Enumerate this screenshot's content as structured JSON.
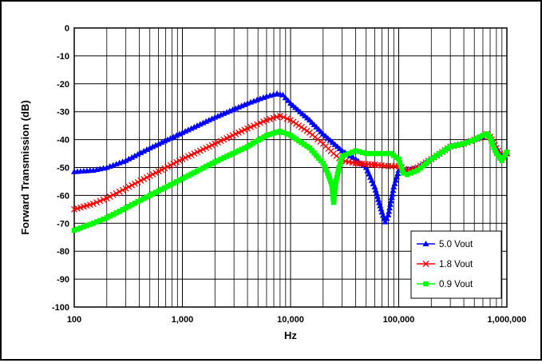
{
  "chart_data": {
    "type": "line",
    "title": "",
    "xlabel": "Hz",
    "ylabel": "Forward Transmission (dB)",
    "x_scale": "log",
    "xlim": [
      100,
      1000000
    ],
    "ylim": [
      -100,
      0
    ],
    "grid": true,
    "legend_position": "bottom-right",
    "x_ticks": [
      100,
      1000,
      10000,
      100000,
      1000000
    ],
    "x_tick_labels": [
      "100",
      "1,000",
      "10,000",
      "100,000",
      "1,000,000"
    ],
    "y_ticks": [
      0,
      -10,
      -20,
      -30,
      -40,
      -50,
      -60,
      -70,
      -80,
      -90,
      -100
    ],
    "y_tick_labels": [
      "0",
      "-10",
      "-20",
      "-30",
      "-40",
      "-50",
      "-60",
      "-70",
      "-80",
      "-90",
      "-100"
    ],
    "series": [
      {
        "name": "5.0 Vout",
        "color": "#0000ff",
        "marker": "triangle",
        "points": [
          [
            100,
            -51.5
          ],
          [
            150,
            -51
          ],
          [
            200,
            -50
          ],
          [
            300,
            -47.5
          ],
          [
            500,
            -43
          ],
          [
            1000,
            -37.5
          ],
          [
            2000,
            -32
          ],
          [
            4000,
            -27
          ],
          [
            6000,
            -24.5
          ],
          [
            7500,
            -23.5
          ],
          [
            8500,
            -24
          ],
          [
            10000,
            -27
          ],
          [
            15000,
            -33
          ],
          [
            20000,
            -38
          ],
          [
            30000,
            -44
          ],
          [
            40000,
            -47
          ],
          [
            50000,
            -50
          ],
          [
            60000,
            -57
          ],
          [
            70000,
            -66
          ],
          [
            75000,
            -69.5
          ],
          [
            80000,
            -67
          ],
          [
            90000,
            -57
          ],
          [
            100000,
            -51
          ],
          [
            120000,
            -51
          ],
          [
            150000,
            -50
          ],
          [
            200000,
            -47
          ],
          [
            300000,
            -42.5
          ],
          [
            400000,
            -41.5
          ],
          [
            500000,
            -40
          ],
          [
            600000,
            -39
          ],
          [
            650000,
            -38
          ],
          [
            700000,
            -39
          ],
          [
            800000,
            -43
          ],
          [
            900000,
            -46
          ],
          [
            1000000,
            -45
          ]
        ]
      },
      {
        "name": "1.8 Vout",
        "color": "#ff0000",
        "marker": "x",
        "points": [
          [
            100,
            -65
          ],
          [
            150,
            -63
          ],
          [
            200,
            -61
          ],
          [
            300,
            -57.5
          ],
          [
            500,
            -53
          ],
          [
            1000,
            -47
          ],
          [
            2000,
            -41.5
          ],
          [
            4000,
            -36
          ],
          [
            6000,
            -33
          ],
          [
            8000,
            -31.5
          ],
          [
            10000,
            -33
          ],
          [
            15000,
            -37.5
          ],
          [
            20000,
            -41.5
          ],
          [
            25000,
            -45
          ],
          [
            30000,
            -47.5
          ],
          [
            40000,
            -48.5
          ],
          [
            60000,
            -49
          ],
          [
            80000,
            -49.5
          ],
          [
            100000,
            -49.5
          ],
          [
            120000,
            -51
          ],
          [
            150000,
            -50
          ],
          [
            200000,
            -47
          ],
          [
            300000,
            -42.5
          ],
          [
            400000,
            -41.5
          ],
          [
            500000,
            -40
          ],
          [
            600000,
            -39
          ],
          [
            650000,
            -38
          ],
          [
            700000,
            -39
          ],
          [
            800000,
            -43
          ],
          [
            900000,
            -46
          ],
          [
            1000000,
            -45
          ]
        ]
      },
      {
        "name": "0.9 Vout",
        "color": "#00ff00",
        "marker": "square",
        "points": [
          [
            100,
            -72.5
          ],
          [
            150,
            -70
          ],
          [
            200,
            -68
          ],
          [
            300,
            -64.5
          ],
          [
            500,
            -60
          ],
          [
            1000,
            -54
          ],
          [
            2000,
            -48
          ],
          [
            4000,
            -42.5
          ],
          [
            6000,
            -38.5
          ],
          [
            8000,
            -37
          ],
          [
            10000,
            -38.5
          ],
          [
            15000,
            -43
          ],
          [
            20000,
            -48.5
          ],
          [
            22000,
            -52
          ],
          [
            24000,
            -56
          ],
          [
            25000,
            -62.5
          ],
          [
            26000,
            -56
          ],
          [
            28000,
            -50
          ],
          [
            30000,
            -46
          ],
          [
            40000,
            -44
          ],
          [
            50000,
            -45
          ],
          [
            70000,
            -45
          ],
          [
            85000,
            -45
          ],
          [
            100000,
            -47
          ],
          [
            110000,
            -52
          ],
          [
            120000,
            -52.5
          ],
          [
            150000,
            -51
          ],
          [
            200000,
            -47
          ],
          [
            300000,
            -42.5
          ],
          [
            400000,
            -41.5
          ],
          [
            500000,
            -40
          ],
          [
            600000,
            -38.5
          ],
          [
            650000,
            -38
          ],
          [
            700000,
            -39.5
          ],
          [
            800000,
            -45
          ],
          [
            900000,
            -47.5
          ],
          [
            1000000,
            -44.5
          ]
        ]
      }
    ]
  }
}
